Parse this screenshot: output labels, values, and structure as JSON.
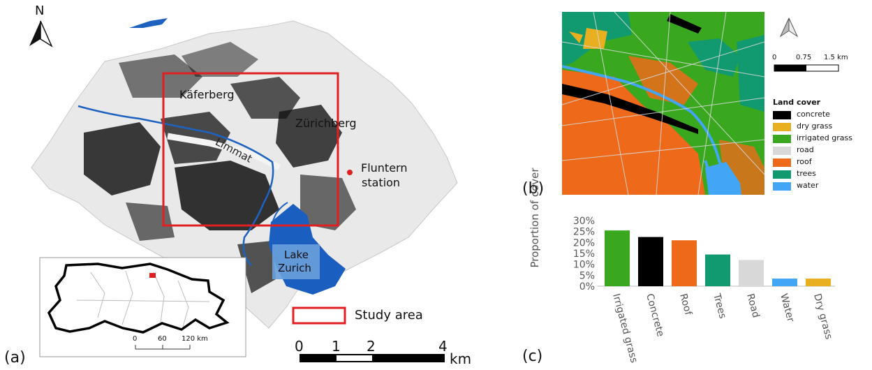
{
  "panel_a": {
    "label": "(a)",
    "north_label": "N",
    "places": {
      "kaferberg": "Käferberg",
      "zurichberg": "Zürichberg",
      "limmat": "Limmat",
      "fluntern_line1": "Fluntern",
      "fluntern_line2": "station",
      "lake_line1": "Lake",
      "lake_line2": "Zurich"
    },
    "inset_scale": {
      "t0": "0",
      "t1": "60",
      "t2": "120 km"
    },
    "legend_study_area": "Study area",
    "scalebar": {
      "t0": "0",
      "t1": "1",
      "t2": "2",
      "t3": "4",
      "unit": "km"
    },
    "colors": {
      "study_area": "#e02020",
      "water": "#1565c0",
      "station": "#e02020"
    }
  },
  "panel_b": {
    "label": "(b)",
    "scale": {
      "t0": "0",
      "t1": "0.75",
      "t2": "1.5 km"
    },
    "legend_title": "Land cover",
    "legend": [
      {
        "label": "concrete",
        "color": "#000000"
      },
      {
        "label": "dry grass",
        "color": "#e8b020"
      },
      {
        "label": "irrigated grass",
        "color": "#3aa81f"
      },
      {
        "label": "road",
        "color": "#d8d8d8"
      },
      {
        "label": "roof",
        "color": "#ee6a1a"
      },
      {
        "label": "trees",
        "color": "#119970"
      },
      {
        "label": "water",
        "color": "#42a5f5"
      }
    ]
  },
  "panel_c": {
    "label": "(c)"
  },
  "chart_data": {
    "type": "bar",
    "title": "",
    "xlabel": "",
    "ylabel": "Proportion of cover",
    "categories": [
      "Irrigated grass",
      "Concrete",
      "Roof",
      "Trees",
      "Road",
      "Water",
      "Dry grass"
    ],
    "values": [
      25.5,
      22.5,
      21,
      14.5,
      12,
      3.5,
      3.5
    ],
    "colors": [
      "#3aa81f",
      "#000000",
      "#ee6a1a",
      "#119970",
      "#d8d8d8",
      "#42a5f5",
      "#e8b020"
    ],
    "ylim": [
      0,
      30
    ],
    "yticks": [
      "0%",
      "5%",
      "10%",
      "15%",
      "20%",
      "25%",
      "30%"
    ],
    "grid": false,
    "legend": "none"
  }
}
